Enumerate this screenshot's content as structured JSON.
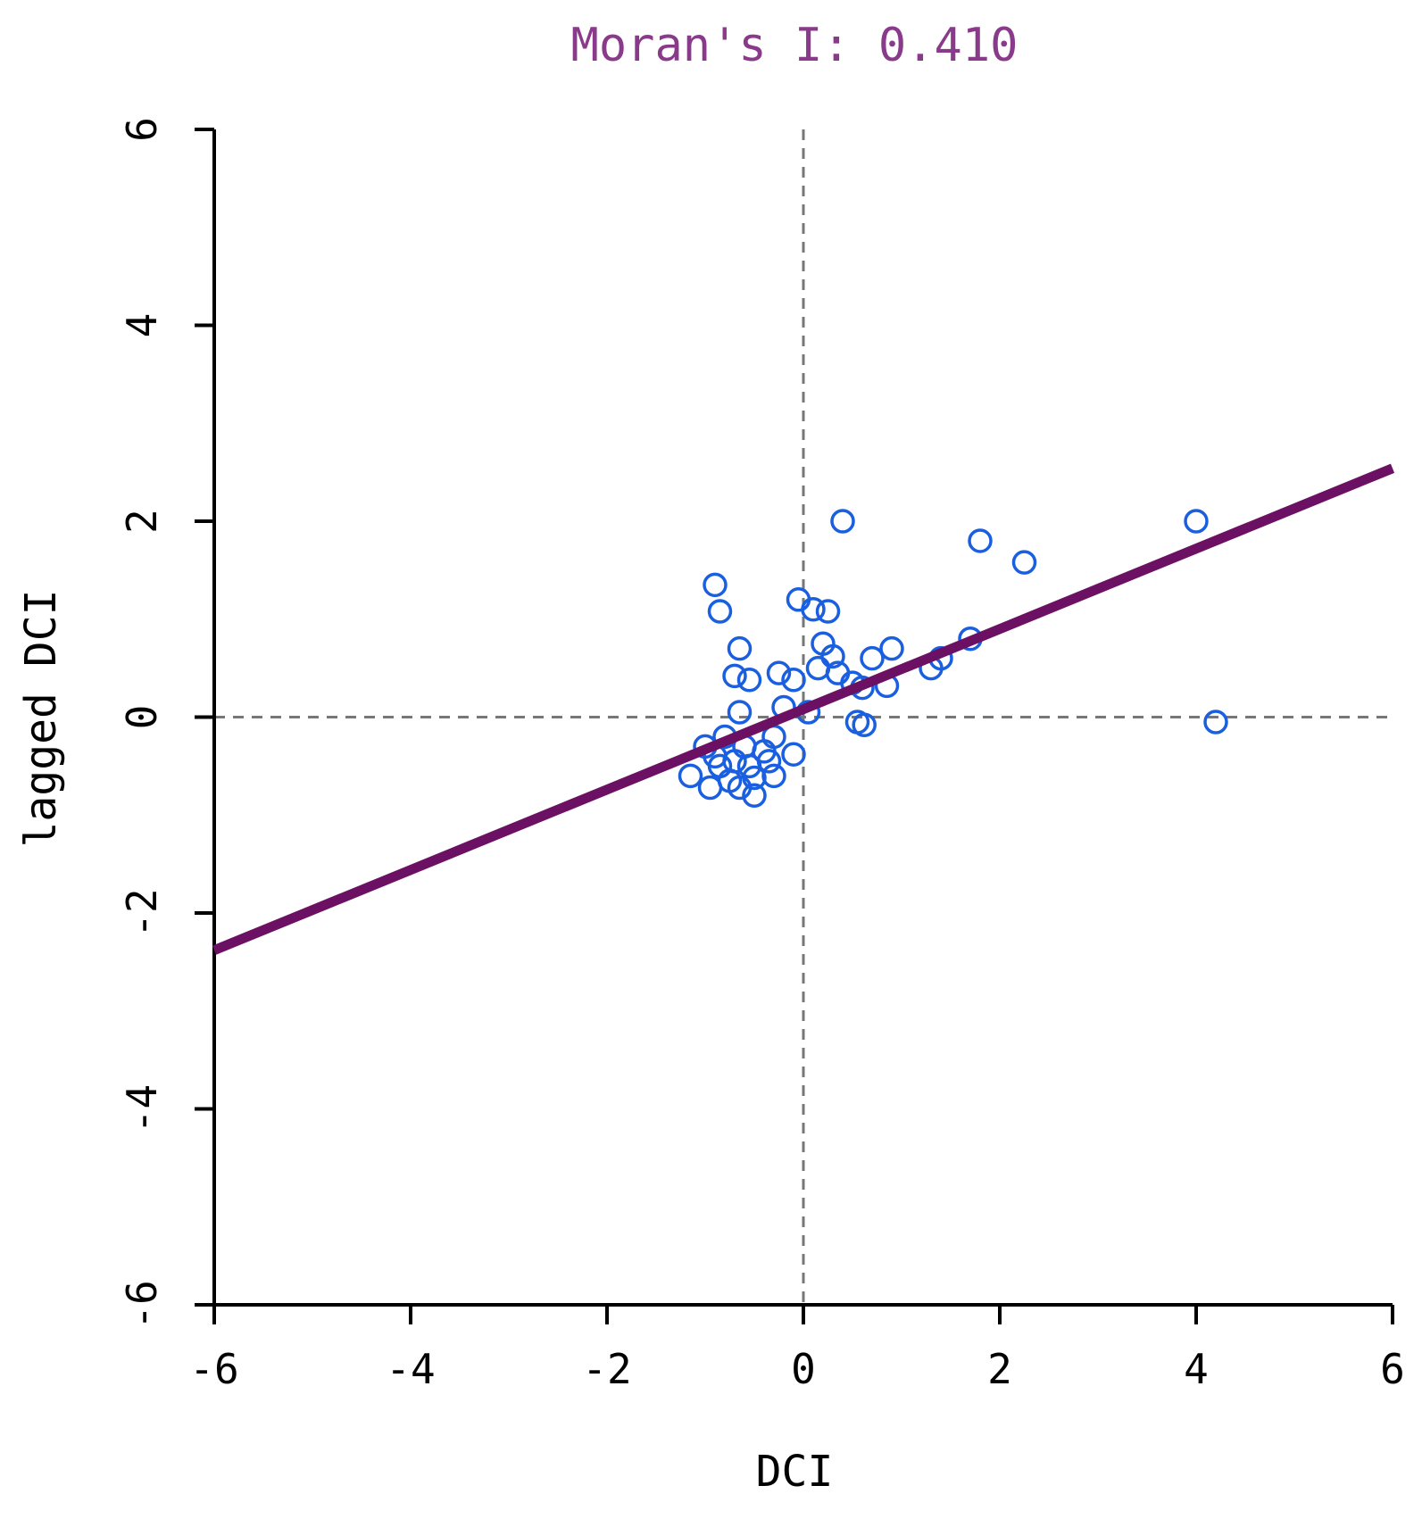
{
  "chart_data": {
    "type": "scatter",
    "title": "Moran's I: 0.410",
    "xlabel": "DCI",
    "ylabel": "lagged DCI",
    "xlim": [
      -6,
      6
    ],
    "ylim": [
      -6,
      6
    ],
    "xticks": [
      "-6",
      "-4",
      "-2",
      "0",
      "2",
      "4",
      "6"
    ],
    "yticks": [
      "-6",
      "-4",
      "-2",
      "0",
      "2",
      "4",
      "6"
    ],
    "grid": false,
    "reference_lines": {
      "x": 0,
      "y": 0,
      "style": "dashed"
    },
    "regression_line": {
      "slope": 0.41,
      "intercept": 0.08
    },
    "points": [
      {
        "x": 0.4,
        "y": 2.0
      },
      {
        "x": 1.8,
        "y": 1.8
      },
      {
        "x": 2.25,
        "y": 1.58
      },
      {
        "x": 4.0,
        "y": 2.0
      },
      {
        "x": 4.2,
        "y": -0.05
      },
      {
        "x": -0.9,
        "y": 1.35
      },
      {
        "x": -0.85,
        "y": 1.08
      },
      {
        "x": -0.05,
        "y": 1.2
      },
      {
        "x": 0.1,
        "y": 1.1
      },
      {
        "x": 0.25,
        "y": 1.08
      },
      {
        "x": -0.65,
        "y": 0.7
      },
      {
        "x": 0.2,
        "y": 0.75
      },
      {
        "x": 0.3,
        "y": 0.62
      },
      {
        "x": 0.9,
        "y": 0.7
      },
      {
        "x": 1.7,
        "y": 0.8
      },
      {
        "x": 1.4,
        "y": 0.6
      },
      {
        "x": 1.3,
        "y": 0.5
      },
      {
        "x": 0.7,
        "y": 0.6
      },
      {
        "x": -0.7,
        "y": 0.42
      },
      {
        "x": -0.55,
        "y": 0.38
      },
      {
        "x": -0.25,
        "y": 0.45
      },
      {
        "x": -0.1,
        "y": 0.38
      },
      {
        "x": 0.35,
        "y": 0.45
      },
      {
        "x": 0.5,
        "y": 0.35
      },
      {
        "x": 0.6,
        "y": 0.3
      },
      {
        "x": 0.85,
        "y": 0.32
      },
      {
        "x": 0.15,
        "y": 0.5
      },
      {
        "x": -0.2,
        "y": 0.1
      },
      {
        "x": 0.05,
        "y": 0.05
      },
      {
        "x": -0.65,
        "y": 0.05
      },
      {
        "x": 0.55,
        "y": -0.05
      },
      {
        "x": 0.62,
        "y": -0.08
      },
      {
        "x": -0.3,
        "y": -0.2
      },
      {
        "x": -0.8,
        "y": -0.2
      },
      {
        "x": -1.0,
        "y": -0.3
      },
      {
        "x": -0.6,
        "y": -0.3
      },
      {
        "x": -0.4,
        "y": -0.35
      },
      {
        "x": -0.1,
        "y": -0.38
      },
      {
        "x": -0.7,
        "y": -0.45
      },
      {
        "x": -0.55,
        "y": -0.5
      },
      {
        "x": -0.85,
        "y": -0.5
      },
      {
        "x": -1.15,
        "y": -0.6
      },
      {
        "x": -0.3,
        "y": -0.6
      },
      {
        "x": -0.75,
        "y": -0.65
      },
      {
        "x": -0.5,
        "y": -0.62
      },
      {
        "x": -0.95,
        "y": -0.72
      },
      {
        "x": -0.65,
        "y": -0.72
      },
      {
        "x": -0.5,
        "y": -0.8
      },
      {
        "x": -0.35,
        "y": -0.45
      },
      {
        "x": -0.9,
        "y": -0.4
      }
    ],
    "colors": {
      "points": "#1a5fe0",
      "regression": "#6b1063",
      "title": "#8a3a8a",
      "reference": "#777777",
      "axis": "#000000"
    }
  }
}
